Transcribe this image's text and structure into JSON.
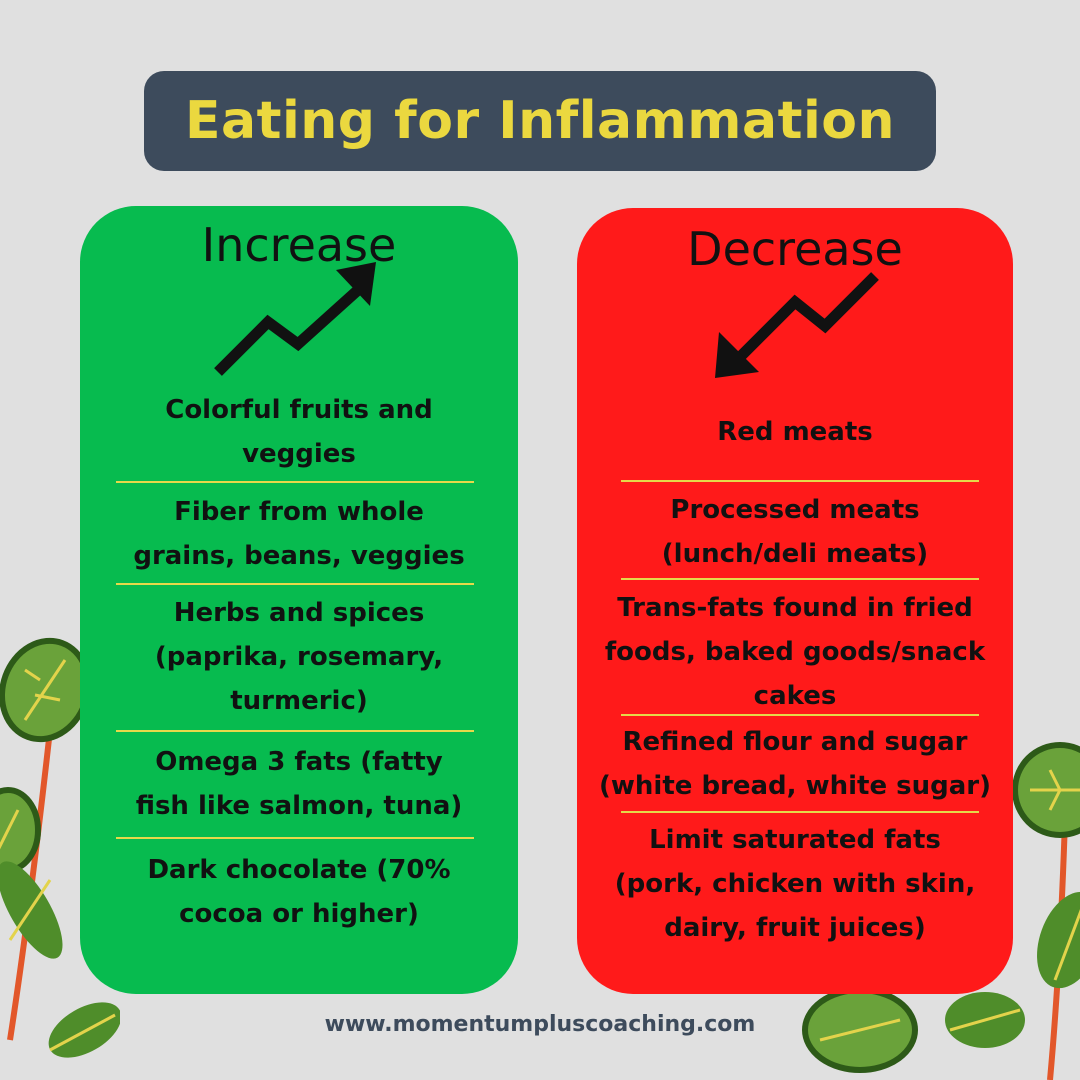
{
  "title": "Eating for Inflammation",
  "colors": {
    "title_bg": "#3d4b5c",
    "title_text": "#ebd83f",
    "increase_bg": "#07bb4f",
    "decrease_bg": "#ff1a1a",
    "separator": "#e6d94a"
  },
  "increase": {
    "heading": "Increase",
    "icon": "trend-up-arrow-icon",
    "items": [
      {
        "line1": "Colorful fruits and",
        "line2": "veggies"
      },
      {
        "line1": "Fiber from whole",
        "line2": "grains, beans, veggies"
      },
      {
        "line1": "Herbs and spices",
        "line2": "(paprika, rosemary,",
        "line3": "turmeric)"
      },
      {
        "line1": "Omega 3 fats (fatty",
        "line2": "fish like salmon, tuna)"
      },
      {
        "line1": "Dark chocolate (70%",
        "line2": "cocoa or higher)"
      }
    ]
  },
  "decrease": {
    "heading": "Decrease",
    "icon": "trend-down-arrow-icon",
    "items": [
      {
        "line1": "Red meats"
      },
      {
        "line1": "Processed meats",
        "line2": "(lunch/deli meats)"
      },
      {
        "line1": "Trans-fats found in fried",
        "line2": "foods, baked goods/snack",
        "line3": "cakes"
      },
      {
        "line1": "Refined flour and sugar",
        "line2": "(white bread, white sugar)"
      },
      {
        "line1": "Limit saturated fats",
        "line2": "(pork, chicken with skin,",
        "line3": "dairy, fruit juices)"
      }
    ]
  },
  "footer": {
    "website": "www.momentumpluscoaching.com"
  }
}
